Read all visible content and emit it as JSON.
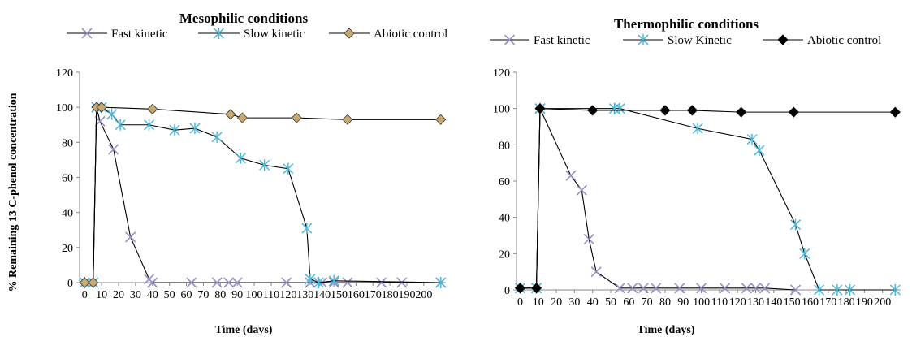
{
  "chart_data": [
    {
      "type": "line",
      "title": "Mesophilic conditions",
      "xlabel": "Time (days)",
      "ylabel": "% Remaining 13 C-phenol concentration",
      "xlim": [
        -3,
        213
      ],
      "ylim": [
        0,
        120
      ],
      "xticks": [
        0,
        10,
        20,
        30,
        40,
        50,
        60,
        70,
        80,
        90,
        100,
        110,
        120,
        130,
        140,
        150,
        160,
        170,
        180,
        190,
        200
      ],
      "yticks": [
        0,
        20,
        40,
        60,
        80,
        100,
        120
      ],
      "grid": false,
      "legend": "top",
      "series": [
        {
          "name": "Fast kinetic",
          "marker": "x",
          "color": "#9A8FC4",
          "x": [
            0,
            5,
            7,
            9,
            17,
            27,
            38,
            40,
            63,
            78,
            85,
            90,
            119,
            133,
            140,
            147,
            155,
            175,
            187,
            210
          ],
          "y": [
            0,
            0,
            100,
            92,
            76,
            26,
            2,
            0,
            0,
            0,
            0,
            0,
            0,
            0,
            0,
            0,
            0,
            0,
            0,
            0
          ]
        },
        {
          "name": "Slow kinetic",
          "marker": "asterisk",
          "color": "#4BB8D8",
          "x": [
            0,
            5,
            7,
            10,
            16,
            21,
            38,
            53,
            65,
            78,
            92,
            106,
            120,
            131,
            133,
            138,
            147,
            210
          ],
          "y": [
            0,
            0,
            100,
            100,
            96,
            90,
            90,
            87,
            88,
            83,
            71,
            67,
            65,
            31,
            2,
            0,
            1,
            0
          ]
        },
        {
          "name": "Abiotic control",
          "marker": "diamond",
          "color": "#C8AA70",
          "x": [
            0,
            5,
            7,
            10,
            40,
            86,
            93,
            125,
            155,
            210
          ],
          "y": [
            0,
            0,
            100,
            100,
            99,
            96,
            94,
            94,
            93,
            93
          ]
        }
      ]
    },
    {
      "type": "line",
      "title": "Thermophilic  conditions",
      "xlabel": "Time (days)",
      "ylabel": "",
      "xlim": [
        -2,
        210
      ],
      "ylim": [
        0,
        120
      ],
      "xticks": [
        0,
        10,
        20,
        30,
        40,
        50,
        60,
        70,
        80,
        90,
        100,
        110,
        120,
        130,
        140,
        150,
        160,
        170,
        180,
        190,
        200
      ],
      "yticks": [
        0,
        20,
        40,
        60,
        80,
        100,
        120
      ],
      "grid": false,
      "legend": "top",
      "series": [
        {
          "name": "Fast kinetic",
          "marker": "x",
          "color": "#9A8FC4",
          "x": [
            0,
            9,
            11,
            28,
            34,
            38,
            42,
            55,
            62,
            68,
            75,
            88,
            100,
            113,
            125,
            130,
            135,
            152
          ],
          "y": [
            1,
            1,
            100,
            63,
            55,
            28,
            10,
            1,
            1,
            1,
            1,
            1,
            1,
            1,
            1,
            1,
            1,
            0
          ]
        },
        {
          "name": "Slow Kinetic",
          "marker": "asterisk",
          "color": "#4BB8D8",
          "x": [
            0,
            9,
            11,
            52,
            55,
            98,
            128,
            132,
            152,
            157,
            165,
            175,
            182,
            207
          ],
          "y": [
            1,
            1,
            100,
            100,
            100,
            89,
            83,
            77,
            36,
            20,
            0,
            0,
            0,
            0
          ]
        },
        {
          "name": "Abiotic control",
          "marker": "diamond-filled",
          "color": "#000000",
          "x": [
            0,
            9,
            11,
            40,
            80,
            95,
            122,
            151,
            207
          ],
          "y": [
            1,
            1,
            100,
            99,
            99,
            99,
            98,
            98,
            98
          ]
        }
      ]
    }
  ]
}
